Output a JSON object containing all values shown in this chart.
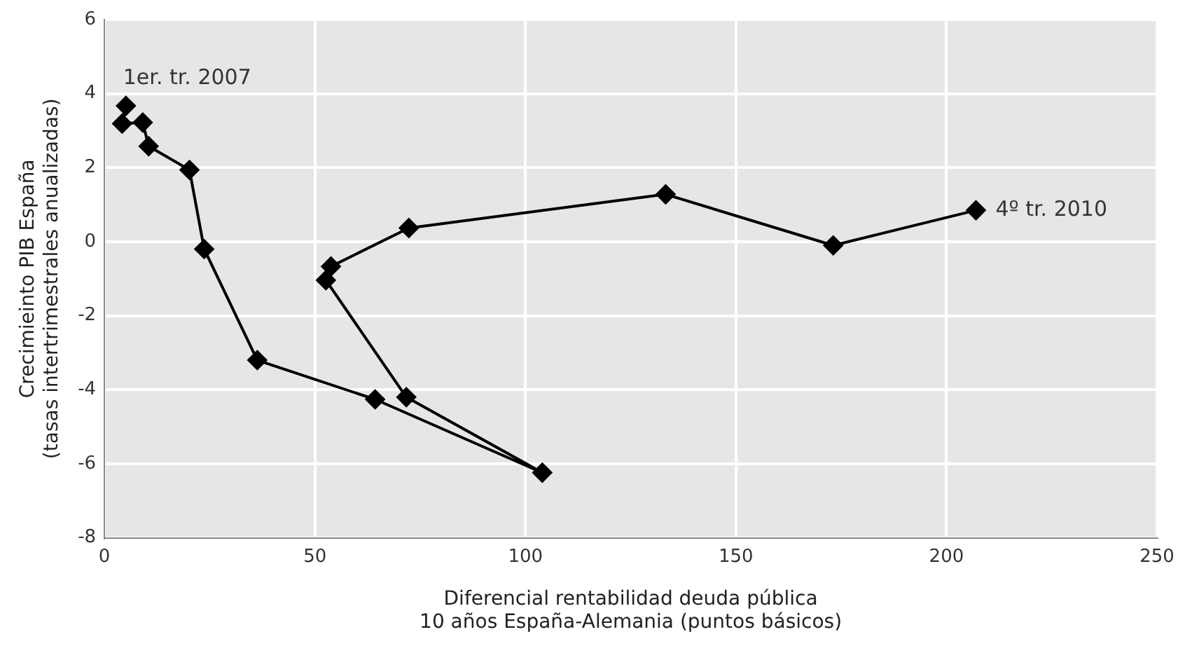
{
  "chart_data": {
    "type": "line",
    "xlabel": "Diferencial rentabilidad deuda pública\n10 años España-Alemania (puntos básicos)",
    "ylabel": "Crecimieinto PIB España\n(tasas intertrimestrales anualizadas)",
    "x": [
      5.1,
      4.2,
      9.1,
      10.5,
      20.2,
      23.7,
      36.3,
      64.3,
      104,
      71.7,
      52.6,
      53.8,
      72.3,
      133.3,
      173.1,
      207
    ],
    "series": [
      {
        "color": "#000000",
        "values": [
          3.67,
          3.19,
          3.22,
          2.58,
          1.94,
          -0.2,
          -3.2,
          -4.26,
          -6.24,
          -4.2,
          -1.04,
          -0.67,
          0.37,
          1.28,
          -0.1,
          0.85
        ]
      }
    ],
    "xlim": [
      0,
      250
    ],
    "xticks": [
      0,
      50,
      100,
      150,
      200,
      250
    ],
    "ylim": [
      -8,
      6
    ],
    "yticks": [
      -8,
      -6,
      -4,
      -2,
      0,
      2,
      4,
      6
    ],
    "grid": true,
    "legend": false,
    "marker": "diamond",
    "line_style": "solid",
    "annotations": [
      {
        "text": "1er. tr. 2007",
        "x": 5.1,
        "y": 3.67
      },
      {
        "text": "4º tr. 2010",
        "x": 207,
        "y": 0.85
      }
    ]
  }
}
